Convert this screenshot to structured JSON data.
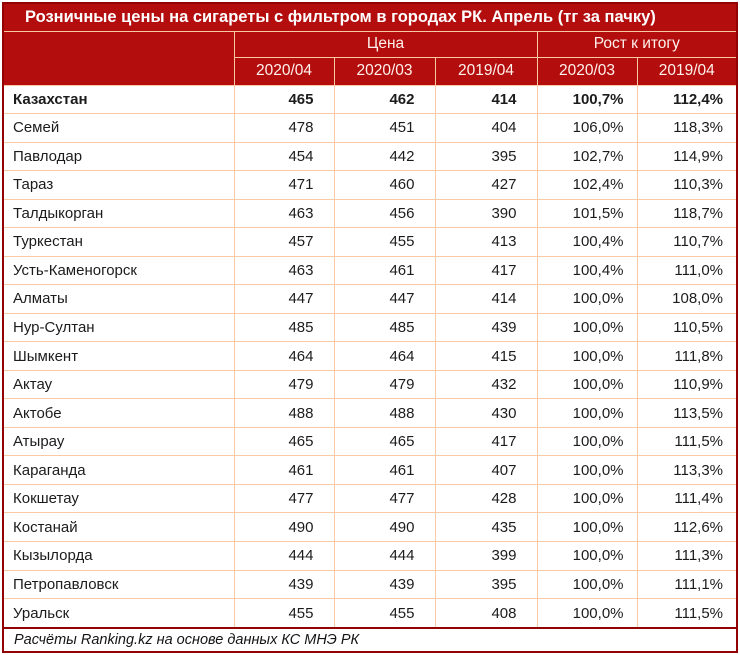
{
  "title": "Розничные цены на сигареты с фильтром в городах РК. Апрель (тг за пачку)",
  "header": {
    "price_group": "Цена",
    "growth_group": "Рост к итогу",
    "price_periods": [
      "2020/04",
      "2020/03",
      "2019/04"
    ],
    "growth_periods": [
      "2020/03",
      "2019/04"
    ]
  },
  "footer": {
    "source": "Расчёты Ranking.kz на основе данных КС МНЭ РК"
  },
  "colors": {
    "header_bg": "#b30d0d",
    "outer_border": "#920404",
    "gridline": "#f8c9a4",
    "header_text": "#fff2ec",
    "body_text": "#1c1c1c"
  },
  "chart_data": {
    "type": "table",
    "title": "Розничные цены на сигареты с фильтром в городах РК. Апрель (тг за пачку)",
    "column_groups": [
      {
        "label": "Цена",
        "columns": [
          "2020/04",
          "2020/03",
          "2019/04"
        ]
      },
      {
        "label": "Рост к итогу",
        "columns": [
          "2020/03",
          "2019/04"
        ]
      }
    ],
    "columns": [
      "",
      "2020/04",
      "2020/03",
      "2019/04",
      "2020/03",
      "2019/04"
    ],
    "rows": [
      {
        "name": "Казахстан",
        "bold": true,
        "values": [
          "465",
          "462",
          "414",
          "100,7%",
          "112,4%"
        ]
      },
      {
        "name": "Семей",
        "bold": false,
        "values": [
          "478",
          "451",
          "404",
          "106,0%",
          "118,3%"
        ]
      },
      {
        "name": "Павлодар",
        "bold": false,
        "values": [
          "454",
          "442",
          "395",
          "102,7%",
          "114,9%"
        ]
      },
      {
        "name": "Тараз",
        "bold": false,
        "values": [
          "471",
          "460",
          "427",
          "102,4%",
          "110,3%"
        ]
      },
      {
        "name": "Талдыкорган",
        "bold": false,
        "values": [
          "463",
          "456",
          "390",
          "101,5%",
          "118,7%"
        ]
      },
      {
        "name": "Туркестан",
        "bold": false,
        "values": [
          "457",
          "455",
          "413",
          "100,4%",
          "110,7%"
        ]
      },
      {
        "name": "Усть-Каменогорск",
        "bold": false,
        "values": [
          "463",
          "461",
          "417",
          "100,4%",
          "111,0%"
        ]
      },
      {
        "name": "Алматы",
        "bold": false,
        "values": [
          "447",
          "447",
          "414",
          "100,0%",
          "108,0%"
        ]
      },
      {
        "name": "Нур-Султан",
        "bold": false,
        "values": [
          "485",
          "485",
          "439",
          "100,0%",
          "110,5%"
        ]
      },
      {
        "name": "Шымкент",
        "bold": false,
        "values": [
          "464",
          "464",
          "415",
          "100,0%",
          "111,8%"
        ]
      },
      {
        "name": "Актау",
        "bold": false,
        "values": [
          "479",
          "479",
          "432",
          "100,0%",
          "110,9%"
        ]
      },
      {
        "name": "Актобе",
        "bold": false,
        "values": [
          "488",
          "488",
          "430",
          "100,0%",
          "113,5%"
        ]
      },
      {
        "name": "Атырау",
        "bold": false,
        "values": [
          "465",
          "465",
          "417",
          "100,0%",
          "111,5%"
        ]
      },
      {
        "name": "Караганда",
        "bold": false,
        "values": [
          "461",
          "461",
          "407",
          "100,0%",
          "113,3%"
        ]
      },
      {
        "name": "Кокшетау",
        "bold": false,
        "values": [
          "477",
          "477",
          "428",
          "100,0%",
          "111,4%"
        ]
      },
      {
        "name": "Костанай",
        "bold": false,
        "values": [
          "490",
          "490",
          "435",
          "100,0%",
          "112,6%"
        ]
      },
      {
        "name": "Кызылорда",
        "bold": false,
        "values": [
          "444",
          "444",
          "399",
          "100,0%",
          "111,3%"
        ]
      },
      {
        "name": "Петропавловск",
        "bold": false,
        "values": [
          "439",
          "439",
          "395",
          "100,0%",
          "111,1%"
        ]
      },
      {
        "name": "Уральск",
        "bold": false,
        "values": [
          "455",
          "455",
          "408",
          "100,0%",
          "111,5%"
        ]
      }
    ],
    "source": "Расчёты Ranking.kz на основе данных КС МНЭ РК",
    "layout": {
      "grid": true,
      "legend": "none"
    }
  }
}
